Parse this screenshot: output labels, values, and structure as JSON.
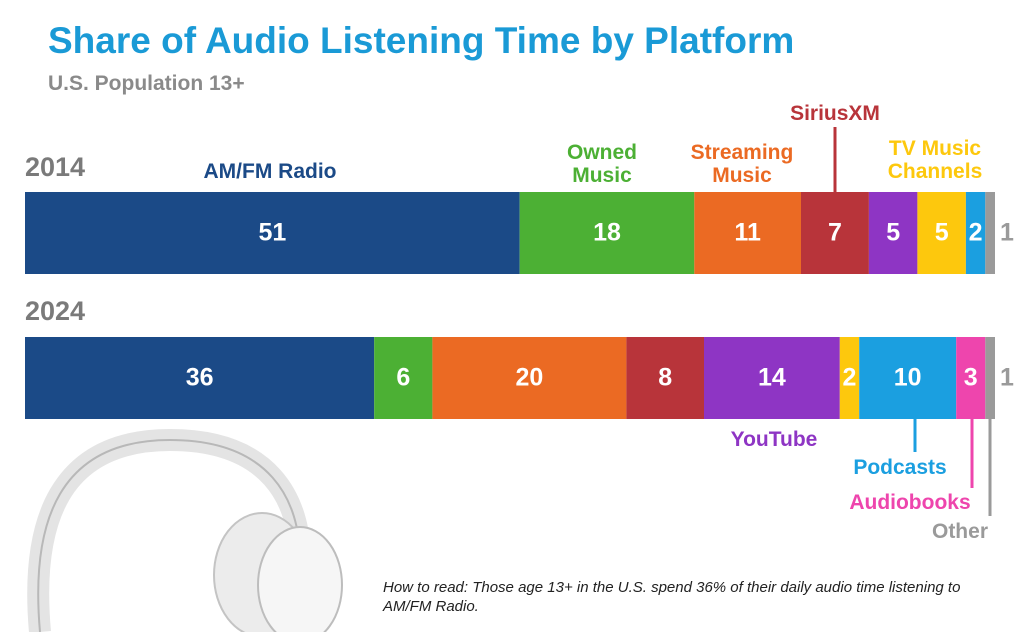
{
  "chart_data": {
    "type": "stacked-bar",
    "orientation": "horizontal",
    "title": "Share of Audio Listening Time by Platform",
    "subtitle": "U.S. Population 13+",
    "categories": [
      "2014",
      "2024"
    ],
    "xlim": [
      0,
      100
    ],
    "series": [
      {
        "name": "AM/FM Radio",
        "color": "#1b4a87",
        "values": [
          51,
          36
        ]
      },
      {
        "name": "Owned Music",
        "color": "#4cb034",
        "values": [
          18,
          6
        ]
      },
      {
        "name": "Streaming Music",
        "color": "#eb6a23",
        "values": [
          11,
          20
        ]
      },
      {
        "name": "SiriusXM",
        "color": "#b8343a",
        "values": [
          7,
          8
        ]
      },
      {
        "name": "YouTube",
        "color": "#8e35c4",
        "values": [
          5,
          14
        ]
      },
      {
        "name": "TV Music Channels",
        "color": "#fdc80d",
        "values": [
          5,
          2
        ]
      },
      {
        "name": "Podcasts",
        "color": "#1b9fe0",
        "values": [
          2,
          10
        ]
      },
      {
        "name": "Audiobooks",
        "color": "#ee45ad",
        "values": [
          null,
          3
        ]
      },
      {
        "name": "Other",
        "color": "#9a9a9a",
        "values": [
          1,
          1
        ]
      }
    ],
    "annotation": "How to read: Those age 13+ in the U.S. spend 36% of their daily audio time listening to AM/FM Radio."
  }
}
